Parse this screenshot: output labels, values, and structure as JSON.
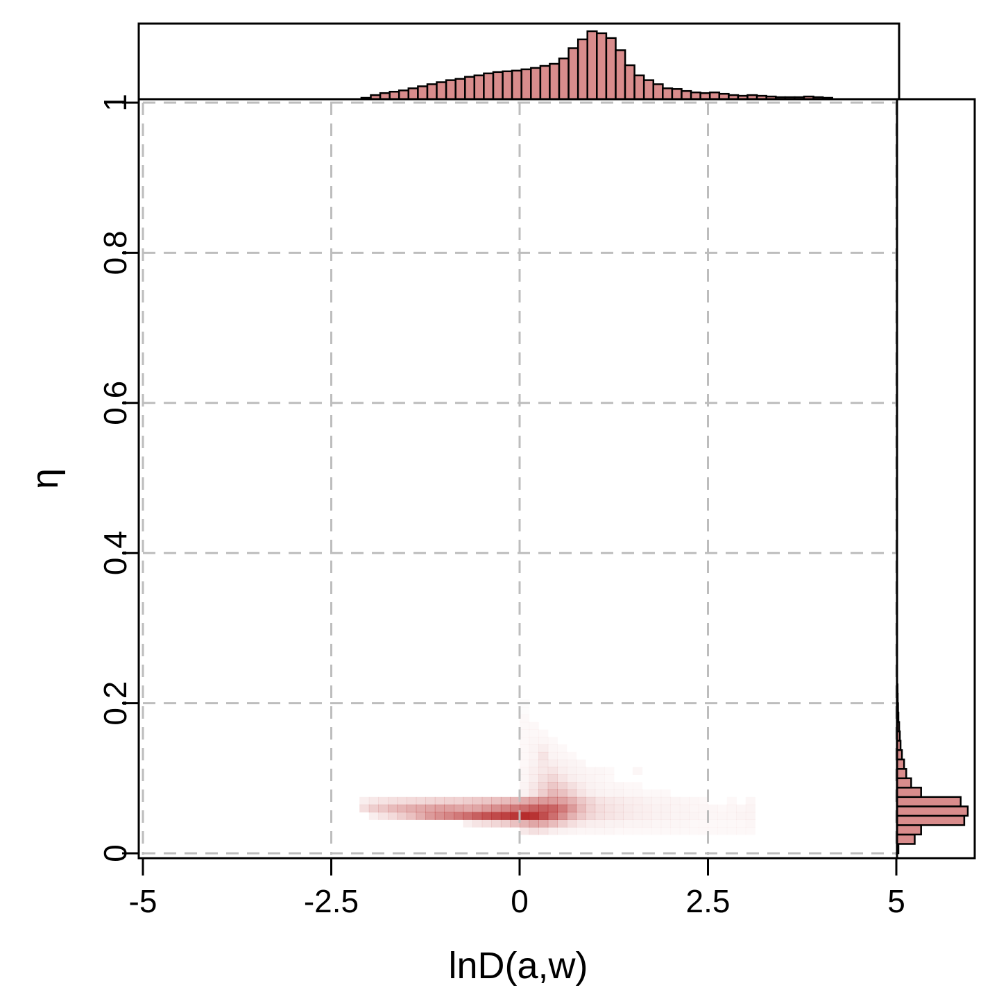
{
  "chart_data": {
    "type": "heatmap",
    "xlabel": "lnD(a,w)",
    "ylabel": "η",
    "xlim": [
      -5,
      5
    ],
    "ylim": [
      0,
      1
    ],
    "x_ticks": [
      -5,
      -2.5,
      0,
      2.5,
      5
    ],
    "x_tick_labels": [
      "-5",
      "-2.5",
      "0",
      "2.5",
      "5"
    ],
    "y_ticks": [
      0,
      0.2,
      0.4,
      0.6,
      0.8,
      1
    ],
    "y_tick_labels": [
      "0",
      "0.2",
      "0.4",
      "0.6",
      "0.8",
      "1"
    ],
    "grid": true,
    "colors": {
      "heat": "#b22222",
      "hist_fill": "#d98c8c",
      "grid": "#bdbdbd"
    },
    "heatmap": {
      "x_bin_width": 0.125,
      "y_bin_width": 0.01,
      "cells": [
        [
          -2.125,
          0.06,
          0.15
        ],
        [
          -2.0,
          0.06,
          0.22
        ],
        [
          -1.875,
          0.06,
          0.25
        ],
        [
          -1.75,
          0.06,
          0.3
        ],
        [
          -1.625,
          0.06,
          0.33
        ],
        [
          -1.5,
          0.06,
          0.36
        ],
        [
          -1.375,
          0.06,
          0.38
        ],
        [
          -1.25,
          0.06,
          0.4
        ],
        [
          -1.125,
          0.06,
          0.42
        ],
        [
          -1.0,
          0.06,
          0.42
        ],
        [
          -0.875,
          0.06,
          0.4
        ],
        [
          -0.75,
          0.06,
          0.38
        ],
        [
          -0.625,
          0.06,
          0.4
        ],
        [
          -0.5,
          0.06,
          0.45
        ],
        [
          -0.375,
          0.06,
          0.5
        ],
        [
          -0.25,
          0.06,
          0.55
        ],
        [
          -0.125,
          0.06,
          0.6
        ],
        [
          0.0,
          0.06,
          0.65
        ],
        [
          0.125,
          0.06,
          0.7
        ],
        [
          0.25,
          0.06,
          0.72
        ],
        [
          0.375,
          0.06,
          0.7
        ],
        [
          0.5,
          0.06,
          0.6
        ],
        [
          0.625,
          0.06,
          0.45
        ],
        [
          0.75,
          0.06,
          0.3
        ],
        [
          0.875,
          0.06,
          0.2
        ],
        [
          1.0,
          0.06,
          0.15
        ],
        [
          1.125,
          0.06,
          0.12
        ],
        [
          1.25,
          0.06,
          0.1
        ],
        [
          1.375,
          0.06,
          0.09
        ],
        [
          1.5,
          0.06,
          0.08
        ],
        [
          1.625,
          0.06,
          0.07
        ],
        [
          1.75,
          0.06,
          0.06
        ],
        [
          1.875,
          0.06,
          0.06
        ],
        [
          2.0,
          0.06,
          0.05
        ],
        [
          2.125,
          0.06,
          0.05
        ],
        [
          2.25,
          0.06,
          0.04
        ],
        [
          2.375,
          0.06,
          0.04
        ],
        [
          2.5,
          0.06,
          0.04
        ],
        [
          2.625,
          0.06,
          0.03
        ],
        [
          2.75,
          0.06,
          0.04
        ],
        [
          2.875,
          0.06,
          0.04
        ],
        [
          3.0,
          0.06,
          0.05
        ],
        [
          -2.125,
          0.07,
          0.08
        ],
        [
          -2.0,
          0.07,
          0.1
        ],
        [
          -1.875,
          0.07,
          0.12
        ],
        [
          -1.75,
          0.07,
          0.14
        ],
        [
          -1.625,
          0.07,
          0.15
        ],
        [
          -1.5,
          0.07,
          0.16
        ],
        [
          -1.375,
          0.07,
          0.17
        ],
        [
          -1.25,
          0.07,
          0.18
        ],
        [
          -1.125,
          0.07,
          0.19
        ],
        [
          -1.0,
          0.07,
          0.2
        ],
        [
          -0.875,
          0.07,
          0.2
        ],
        [
          -0.75,
          0.07,
          0.22
        ],
        [
          -0.625,
          0.07,
          0.24
        ],
        [
          -0.5,
          0.07,
          0.26
        ],
        [
          -0.375,
          0.07,
          0.28
        ],
        [
          -0.25,
          0.07,
          0.3
        ],
        [
          -0.125,
          0.07,
          0.33
        ],
        [
          0.0,
          0.07,
          0.38
        ],
        [
          0.125,
          0.07,
          0.42
        ],
        [
          0.25,
          0.07,
          0.45
        ],
        [
          0.375,
          0.07,
          0.45
        ],
        [
          0.5,
          0.07,
          0.42
        ],
        [
          0.625,
          0.07,
          0.35
        ],
        [
          0.75,
          0.07,
          0.25
        ],
        [
          0.875,
          0.07,
          0.18
        ],
        [
          1.0,
          0.07,
          0.12
        ],
        [
          1.125,
          0.07,
          0.1
        ],
        [
          1.25,
          0.07,
          0.09
        ],
        [
          1.375,
          0.07,
          0.08
        ],
        [
          1.5,
          0.07,
          0.07
        ],
        [
          1.625,
          0.07,
          0.06
        ],
        [
          1.75,
          0.07,
          0.05
        ],
        [
          1.875,
          0.07,
          0.05
        ],
        [
          2.0,
          0.07,
          0.05
        ],
        [
          2.125,
          0.07,
          0.04
        ],
        [
          2.25,
          0.07,
          0.04
        ],
        [
          2.375,
          0.07,
          0.03
        ],
        [
          2.75,
          0.07,
          0.03
        ],
        [
          3.0,
          0.07,
          0.04
        ],
        [
          -2.0,
          0.05,
          0.08
        ],
        [
          -1.875,
          0.05,
          0.12
        ],
        [
          -1.75,
          0.05,
          0.16
        ],
        [
          -1.625,
          0.05,
          0.22
        ],
        [
          -1.5,
          0.05,
          0.28
        ],
        [
          -1.375,
          0.05,
          0.36
        ],
        [
          -1.25,
          0.05,
          0.45
        ],
        [
          -1.125,
          0.05,
          0.5
        ],
        [
          -1.0,
          0.05,
          0.55
        ],
        [
          -0.875,
          0.05,
          0.6
        ],
        [
          -0.75,
          0.05,
          0.65
        ],
        [
          -0.625,
          0.05,
          0.72
        ],
        [
          -0.5,
          0.05,
          0.78
        ],
        [
          -0.375,
          0.05,
          0.82
        ],
        [
          -0.25,
          0.05,
          0.86
        ],
        [
          -0.125,
          0.05,
          0.9
        ],
        [
          0.0,
          0.05,
          0.95
        ],
        [
          0.125,
          0.05,
          0.92
        ],
        [
          0.25,
          0.05,
          0.8
        ],
        [
          0.375,
          0.05,
          0.65
        ],
        [
          0.5,
          0.05,
          0.5
        ],
        [
          0.625,
          0.05,
          0.35
        ],
        [
          0.75,
          0.05,
          0.25
        ],
        [
          0.875,
          0.05,
          0.18
        ],
        [
          1.0,
          0.05,
          0.14
        ],
        [
          1.125,
          0.05,
          0.12
        ],
        [
          1.25,
          0.05,
          0.1
        ],
        [
          1.375,
          0.05,
          0.09
        ],
        [
          1.5,
          0.05,
          0.08
        ],
        [
          1.625,
          0.05,
          0.07
        ],
        [
          1.75,
          0.05,
          0.06
        ],
        [
          1.875,
          0.05,
          0.06
        ],
        [
          2.0,
          0.05,
          0.05
        ],
        [
          2.125,
          0.05,
          0.05
        ],
        [
          2.25,
          0.05,
          0.05
        ],
        [
          2.375,
          0.05,
          0.04
        ],
        [
          2.5,
          0.05,
          0.04
        ],
        [
          2.625,
          0.05,
          0.04
        ],
        [
          2.75,
          0.05,
          0.04
        ],
        [
          2.875,
          0.05,
          0.05
        ],
        [
          3.0,
          0.05,
          0.05
        ],
        [
          -0.75,
          0.04,
          0.08
        ],
        [
          -0.625,
          0.04,
          0.12
        ],
        [
          -0.5,
          0.04,
          0.15
        ],
        [
          -0.375,
          0.04,
          0.18
        ],
        [
          -0.25,
          0.04,
          0.22
        ],
        [
          -0.125,
          0.04,
          0.28
        ],
        [
          0.0,
          0.04,
          0.35
        ],
        [
          0.125,
          0.04,
          0.4
        ],
        [
          0.25,
          0.04,
          0.38
        ],
        [
          0.375,
          0.04,
          0.3
        ],
        [
          0.5,
          0.04,
          0.22
        ],
        [
          0.625,
          0.04,
          0.15
        ],
        [
          0.75,
          0.04,
          0.1
        ],
        [
          0.875,
          0.04,
          0.08
        ],
        [
          1.0,
          0.04,
          0.07
        ],
        [
          1.125,
          0.04,
          0.06
        ],
        [
          1.25,
          0.04,
          0.06
        ],
        [
          1.375,
          0.04,
          0.05
        ],
        [
          1.5,
          0.04,
          0.05
        ],
        [
          1.625,
          0.04,
          0.05
        ],
        [
          1.75,
          0.04,
          0.04
        ],
        [
          1.875,
          0.04,
          0.04
        ],
        [
          2.0,
          0.04,
          0.04
        ],
        [
          2.125,
          0.04,
          0.04
        ],
        [
          2.25,
          0.04,
          0.03
        ],
        [
          2.375,
          0.04,
          0.03
        ],
        [
          2.5,
          0.04,
          0.03
        ],
        [
          2.625,
          0.04,
          0.03
        ],
        [
          2.75,
          0.04,
          0.03
        ],
        [
          2.875,
          0.04,
          0.03
        ],
        [
          3.0,
          0.04,
          0.04
        ],
        [
          0.0,
          0.03,
          0.1
        ],
        [
          0.125,
          0.03,
          0.14
        ],
        [
          0.25,
          0.03,
          0.12
        ],
        [
          0.375,
          0.03,
          0.08
        ],
        [
          0.5,
          0.03,
          0.06
        ],
        [
          0.625,
          0.03,
          0.05
        ],
        [
          0.75,
          0.03,
          0.04
        ],
        [
          0.875,
          0.03,
          0.04
        ],
        [
          1.0,
          0.03,
          0.04
        ],
        [
          1.125,
          0.03,
          0.04
        ],
        [
          1.25,
          0.03,
          0.03
        ],
        [
          1.375,
          0.03,
          0.03
        ],
        [
          1.5,
          0.03,
          0.03
        ],
        [
          1.625,
          0.03,
          0.03
        ],
        [
          1.75,
          0.03,
          0.03
        ],
        [
          1.875,
          0.03,
          0.03
        ],
        [
          2.0,
          0.03,
          0.03
        ],
        [
          2.125,
          0.03,
          0.03
        ],
        [
          2.25,
          0.03,
          0.03
        ],
        [
          2.375,
          0.03,
          0.03
        ],
        [
          2.5,
          0.03,
          0.03
        ],
        [
          2.625,
          0.03,
          0.03
        ],
        [
          2.75,
          0.03,
          0.03
        ],
        [
          2.875,
          0.03,
          0.03
        ],
        [
          3.0,
          0.03,
          0.03
        ],
        [
          0.0,
          0.08,
          0.06
        ],
        [
          0.125,
          0.08,
          0.12
        ],
        [
          0.25,
          0.08,
          0.22
        ],
        [
          0.375,
          0.08,
          0.32
        ],
        [
          0.5,
          0.08,
          0.28
        ],
        [
          0.625,
          0.08,
          0.2
        ],
        [
          0.75,
          0.08,
          0.12
        ],
        [
          0.875,
          0.08,
          0.08
        ],
        [
          1.0,
          0.08,
          0.06
        ],
        [
          1.125,
          0.08,
          0.05
        ],
        [
          1.25,
          0.08,
          0.05
        ],
        [
          1.375,
          0.08,
          0.04
        ],
        [
          1.5,
          0.08,
          0.04
        ],
        [
          1.625,
          0.08,
          0.03
        ],
        [
          1.75,
          0.08,
          0.03
        ],
        [
          1.875,
          0.08,
          0.03
        ],
        [
          0.0,
          0.09,
          0.05
        ],
        [
          0.125,
          0.09,
          0.1
        ],
        [
          0.25,
          0.09,
          0.18
        ],
        [
          0.375,
          0.09,
          0.25
        ],
        [
          0.5,
          0.09,
          0.2
        ],
        [
          0.625,
          0.09,
          0.14
        ],
        [
          0.75,
          0.09,
          0.09
        ],
        [
          0.875,
          0.09,
          0.06
        ],
        [
          1.0,
          0.09,
          0.05
        ],
        [
          1.125,
          0.09,
          0.04
        ],
        [
          1.25,
          0.09,
          0.04
        ],
        [
          1.375,
          0.09,
          0.03
        ],
        [
          1.5,
          0.09,
          0.03
        ],
        [
          0.0,
          0.1,
          0.04
        ],
        [
          0.125,
          0.1,
          0.08
        ],
        [
          0.25,
          0.1,
          0.14
        ],
        [
          0.375,
          0.1,
          0.18
        ],
        [
          0.5,
          0.1,
          0.12
        ],
        [
          0.625,
          0.1,
          0.08
        ],
        [
          0.75,
          0.1,
          0.06
        ],
        [
          0.875,
          0.1,
          0.05
        ],
        [
          1.0,
          0.1,
          0.04
        ],
        [
          1.125,
          0.1,
          0.03
        ],
        [
          0.0,
          0.11,
          0.04
        ],
        [
          0.125,
          0.11,
          0.07
        ],
        [
          0.25,
          0.11,
          0.1
        ],
        [
          0.375,
          0.11,
          0.12
        ],
        [
          0.5,
          0.11,
          0.08
        ],
        [
          0.625,
          0.11,
          0.06
        ],
        [
          0.75,
          0.11,
          0.05
        ],
        [
          0.875,
          0.11,
          0.04
        ],
        [
          1.0,
          0.11,
          0.04
        ],
        [
          1.125,
          0.11,
          0.03
        ],
        [
          1.5,
          0.11,
          0.04
        ],
        [
          0.0,
          0.12,
          0.03
        ],
        [
          0.125,
          0.12,
          0.06
        ],
        [
          0.25,
          0.12,
          0.1
        ],
        [
          0.375,
          0.12,
          0.08
        ],
        [
          0.5,
          0.12,
          0.06
        ],
        [
          0.625,
          0.12,
          0.05
        ],
        [
          0.75,
          0.12,
          0.04
        ],
        [
          0.0,
          0.13,
          0.03
        ],
        [
          0.125,
          0.13,
          0.05
        ],
        [
          0.25,
          0.13,
          0.12
        ],
        [
          0.375,
          0.13,
          0.05
        ],
        [
          0.5,
          0.13,
          0.04
        ],
        [
          0.625,
          0.13,
          0.03
        ],
        [
          0.0,
          0.14,
          0.03
        ],
        [
          0.125,
          0.14,
          0.05
        ],
        [
          0.25,
          0.14,
          0.08
        ],
        [
          0.375,
          0.14,
          0.04
        ],
        [
          0.5,
          0.14,
          0.03
        ],
        [
          0.0,
          0.15,
          0.03
        ],
        [
          0.125,
          0.15,
          0.04
        ],
        [
          0.25,
          0.15,
          0.04
        ],
        [
          0.375,
          0.15,
          0.03
        ],
        [
          0.0,
          0.16,
          0.03
        ],
        [
          0.125,
          0.16,
          0.03
        ],
        [
          0.25,
          0.16,
          0.03
        ],
        [
          0.0,
          0.17,
          0.03
        ],
        [
          0.125,
          0.17,
          0.03
        ],
        [
          0.0,
          0.18,
          0.03
        ],
        [
          0.0,
          0.19,
          0.02
        ],
        [
          0.0,
          0.2,
          0.02
        ]
      ]
    },
    "x_histogram": {
      "start": -2.1,
      "bin_width": 0.125,
      "counts": [
        0.02,
        0.06,
        0.09,
        0.11,
        0.13,
        0.16,
        0.19,
        0.22,
        0.25,
        0.28,
        0.3,
        0.33,
        0.35,
        0.38,
        0.4,
        0.41,
        0.42,
        0.44,
        0.46,
        0.49,
        0.52,
        0.6,
        0.75,
        0.88,
        1.0,
        0.97,
        0.9,
        0.72,
        0.5,
        0.35,
        0.28,
        0.22,
        0.16,
        0.15,
        0.12,
        0.1,
        0.09,
        0.1,
        0.08,
        0.06,
        0.05,
        0.06,
        0.05,
        0.04,
        0.03,
        0.03,
        0.03,
        0.04,
        0.03,
        0.02
      ]
    },
    "y_histogram": {
      "start": 0.0,
      "bin_width": 0.0125,
      "counts": [
        0.02,
        0.25,
        0.34,
        0.95,
        1.0,
        0.9,
        0.34,
        0.2,
        0.13,
        0.1,
        0.07,
        0.05,
        0.04,
        0.03,
        0.02,
        0.015,
        0.01,
        0.008
      ]
    }
  }
}
